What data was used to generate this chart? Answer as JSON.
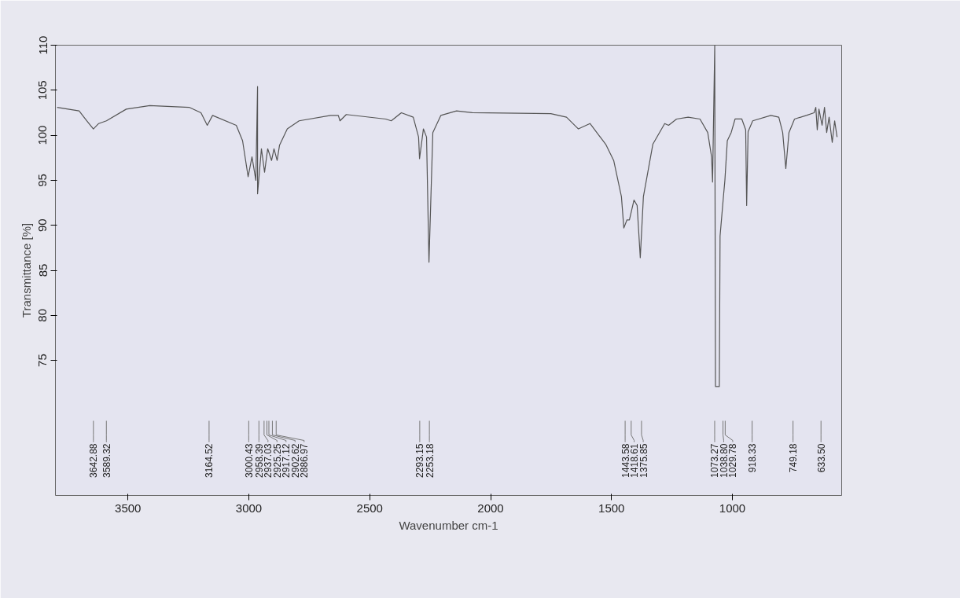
{
  "chart_data": {
    "type": "line",
    "xlabel": "Wavenumber cm-1",
    "ylabel": "Transmittance [%]",
    "xlim": [
      3800,
      548
    ],
    "ylim": [
      60,
      110
    ],
    "xticks": [
      3500,
      3000,
      2500,
      2000,
      1500,
      1000
    ],
    "yticks": [
      75,
      80,
      85,
      90,
      95,
      100,
      105,
      110
    ],
    "grid": false,
    "marker": "none",
    "line_style": "solid",
    "series": [
      {
        "color": "#555555",
        "x": [
          3793,
          3702,
          3670,
          3643,
          3621,
          3589,
          3507,
          3410,
          3247,
          3198,
          3172,
          3150,
          3052,
          3026,
          3003,
          2987,
          2971,
          2964,
          2964,
          2948,
          2935,
          2922,
          2906,
          2896,
          2883,
          2873,
          2841,
          2792,
          2662,
          2630,
          2623,
          2597,
          2434,
          2411,
          2369,
          2320,
          2298,
          2294,
          2278,
          2265,
          2255,
          2239,
          2206,
          2141,
          2076,
          1751,
          1686,
          1637,
          1589,
          1524,
          1491,
          1459,
          1449,
          1436,
          1426,
          1407,
          1394,
          1381,
          1368,
          1329,
          1280,
          1264,
          1231,
          1183,
          1134,
          1102,
          1086,
          1082,
          1073,
          1070,
          1054,
          1051,
          1037,
          1031,
          1021,
          1005,
          989,
          961,
          945,
          941,
          935,
          916,
          841,
          808,
          792,
          779,
          766,
          743,
          694,
          662,
          655,
          649,
          642,
          629,
          619,
          610,
          600,
          587,
          577,
          567
        ],
        "values": [
          103.1,
          102.7,
          101.6,
          100.7,
          101.3,
          101.6,
          102.9,
          103.3,
          103.1,
          102.5,
          101.1,
          102.2,
          101.1,
          99.4,
          95.4,
          97.6,
          95.0,
          105.4,
          93.5,
          98.5,
          95.9,
          98.5,
          97.2,
          98.5,
          97.2,
          98.9,
          100.7,
          101.6,
          102.2,
          102.2,
          101.6,
          102.3,
          101.8,
          101.6,
          102.5,
          102.0,
          99.8,
          97.4,
          100.7,
          99.8,
          85.9,
          100.3,
          102.2,
          102.7,
          102.5,
          102.4,
          102.0,
          100.7,
          101.3,
          99.0,
          97.2,
          93.2,
          89.7,
          90.6,
          90.6,
          92.8,
          92.2,
          86.4,
          93.2,
          99.0,
          101.3,
          101.1,
          101.8,
          102.0,
          101.8,
          100.3,
          97.6,
          94.8,
          110,
          72.1,
          72.1,
          88.8,
          93.2,
          95.0,
          99.4,
          100.3,
          101.8,
          101.8,
          100.6,
          92.2,
          100.4,
          101.6,
          102.2,
          102.0,
          100.3,
          96.3,
          100.3,
          101.8,
          102.2,
          102.5,
          103.1,
          100.6,
          102.9,
          101.1,
          103.1,
          100.3,
          102.0,
          99.2,
          101.6,
          99.8
        ]
      }
    ],
    "annotations": [
      {
        "text": "3642.88",
        "x": 3642.88
      },
      {
        "text": "3589.32",
        "x": 3589.32
      },
      {
        "text": "3164.52",
        "x": 3164.52
      },
      {
        "text": "3000.43",
        "x": 3000.43
      },
      {
        "text": "2958.39",
        "x": 2958.39
      },
      {
        "text": "2937.03",
        "x": 2937.03
      },
      {
        "text": "2925.25",
        "x": 2925.25
      },
      {
        "text": "2917.12",
        "x": 2917.12
      },
      {
        "text": "2902.62",
        "x": 2902.62
      },
      {
        "text": "2886.97",
        "x": 2886.97
      },
      {
        "text": "2293.15",
        "x": 2293.15
      },
      {
        "text": "2253.18",
        "x": 2253.18
      },
      {
        "text": "1443.58",
        "x": 1443.58
      },
      {
        "text": "1418.61",
        "x": 1418.61
      },
      {
        "text": "1375.85",
        "x": 1375.85
      },
      {
        "text": "1073.27",
        "x": 1073.27
      },
      {
        "text": "1038.80",
        "x": 1038.8
      },
      {
        "text": "1029.78",
        "x": 1029.78
      },
      {
        "text": "918.33",
        "x": 918.33
      },
      {
        "text": "749.18",
        "x": 749.18
      },
      {
        "text": "633.50",
        "x": 633.5
      }
    ]
  }
}
